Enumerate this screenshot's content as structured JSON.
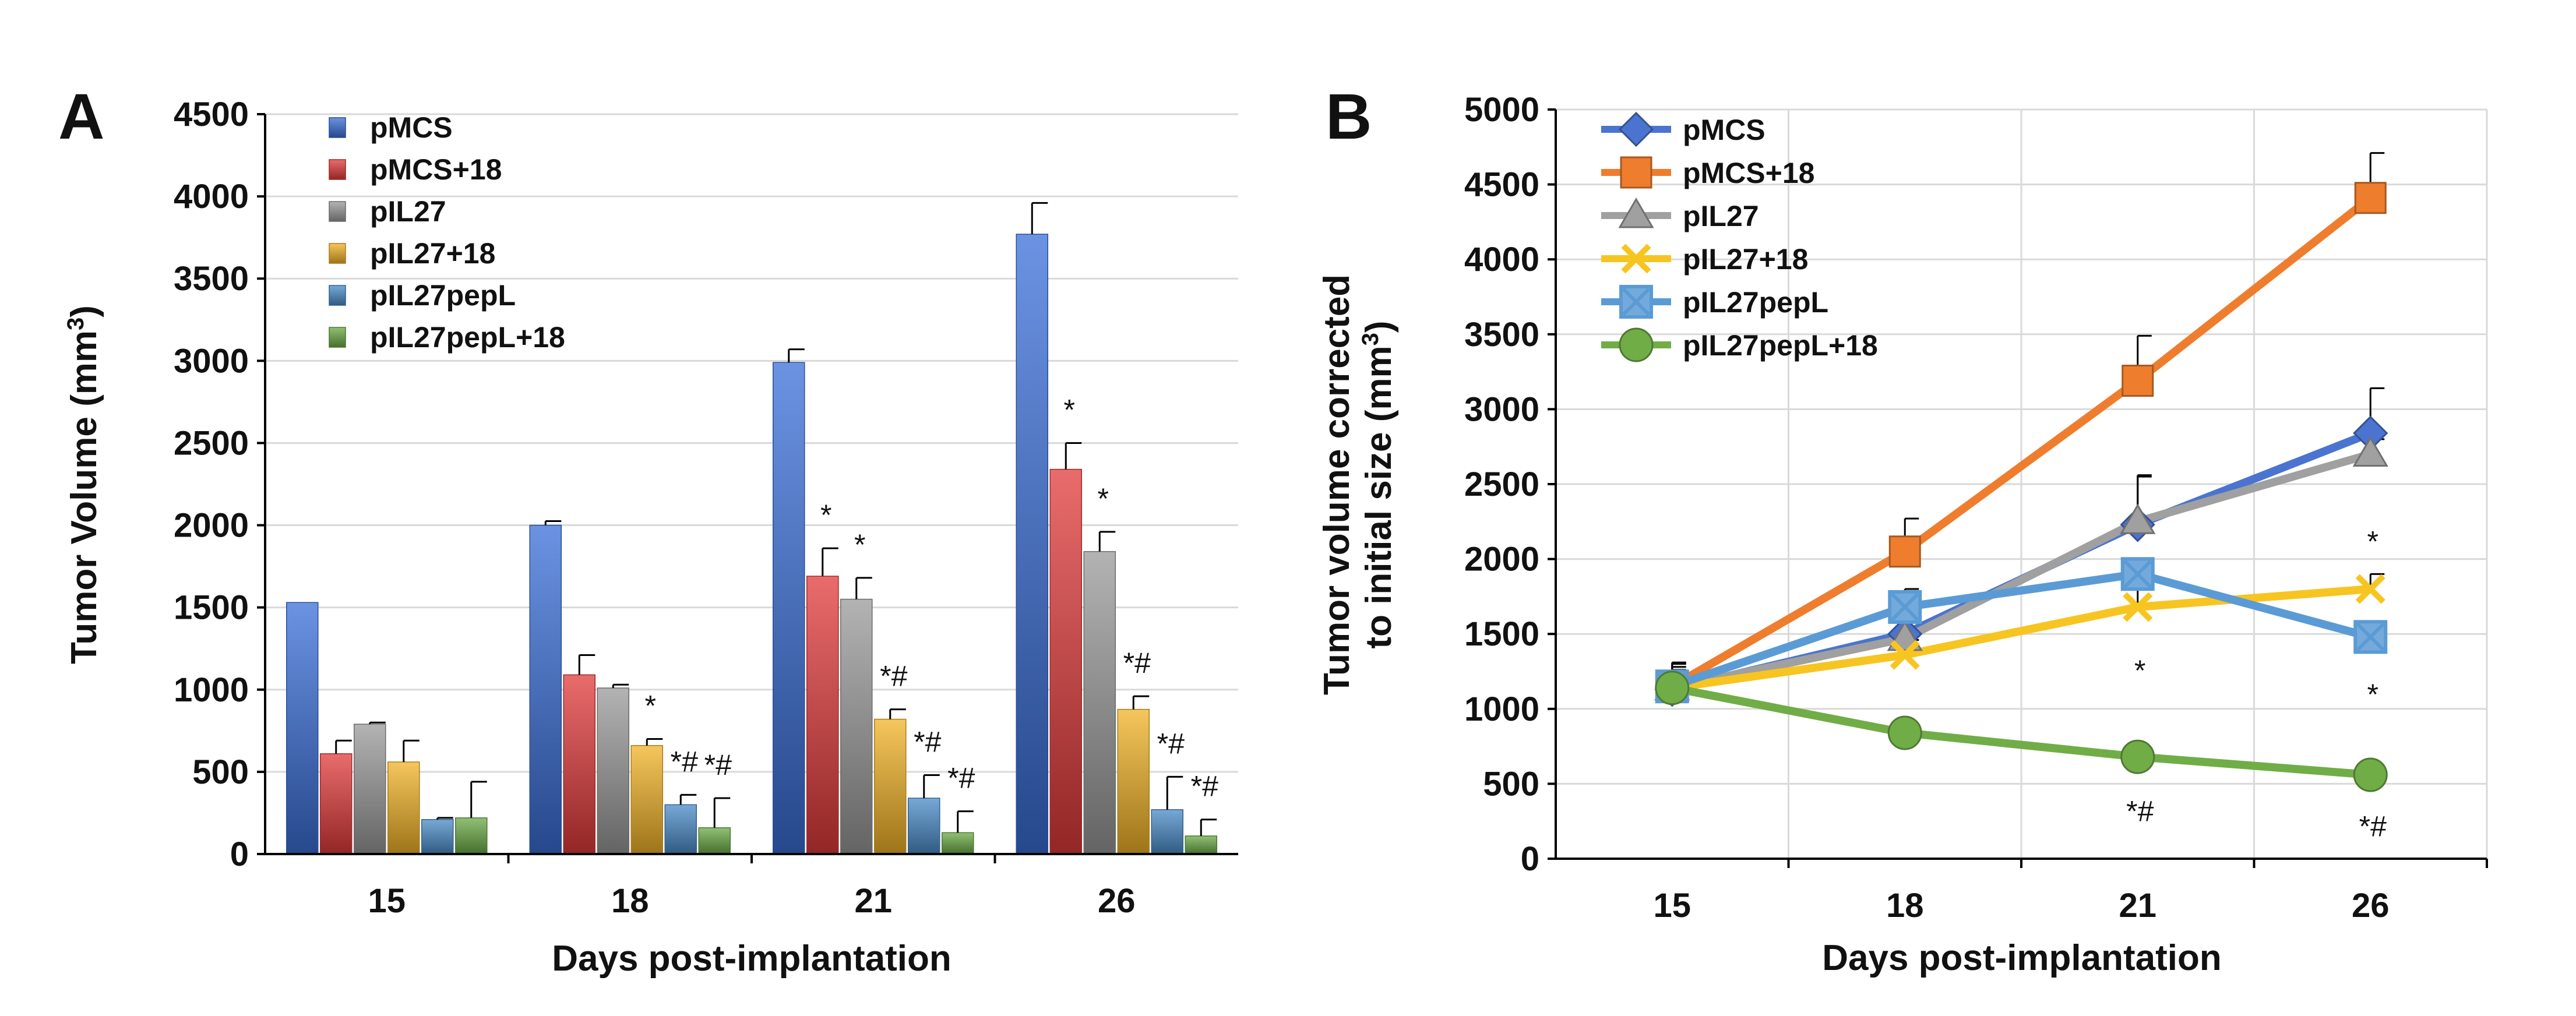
{
  "colors": {
    "pMCS": "#3a6fd8",
    "pMCS+18": "#e23b3b",
    "pIL27": "#9a9a9a",
    "pIL27+18": "#f2b326",
    "pIL27pepL": "#4a8cc8",
    "pIL27pepL+18": "#6bab45",
    "lineA": "#4a74d0",
    "lineB": "#ef7d2e",
    "lineC": "#a0a0a0",
    "lineD": "#f7c521",
    "lineE": "#5b9bd5",
    "lineF": "#70ad47"
  },
  "chart_data": [
    {
      "panel": "A",
      "type": "bar",
      "title": "",
      "xlabel": "Days post-implantation",
      "ylabel": "Tumor Volume (mm3)",
      "ylabel_main": "Tumor Volume (mm",
      "ylabel_sup": "3",
      "ylabel_close": ")",
      "ylim": [
        0,
        4500
      ],
      "yticks": [
        "0",
        "500",
        "1000",
        "1500",
        "2000",
        "2500",
        "3000",
        "3500",
        "4000",
        "4500"
      ],
      "categories": [
        "15",
        "18",
        "21",
        "26"
      ],
      "legend_position": "top-left",
      "series": [
        {
          "name": "pMCS",
          "values": [
            1530,
            2000,
            2990,
            3770
          ],
          "errors": [
            0,
            25,
            80,
            190
          ]
        },
        {
          "name": "pMCS+18",
          "values": [
            610,
            1090,
            1690,
            2340
          ],
          "errors": [
            80,
            120,
            170,
            160
          ]
        },
        {
          "name": "pIL27",
          "values": [
            790,
            1010,
            1550,
            1840
          ],
          "errors": [
            10,
            20,
            130,
            120
          ]
        },
        {
          "name": "pIL27+18",
          "values": [
            560,
            660,
            820,
            880
          ],
          "errors": [
            130,
            40,
            60,
            80
          ]
        },
        {
          "name": "pIL27pepL",
          "values": [
            210,
            300,
            340,
            270
          ],
          "errors": [
            10,
            60,
            140,
            200
          ]
        },
        {
          "name": "pIL27pepL+18",
          "values": [
            220,
            160,
            130,
            110
          ],
          "errors": [
            220,
            180,
            130,
            100
          ]
        }
      ],
      "annotations": [
        {
          "category": 1,
          "series": 3,
          "text": "*"
        },
        {
          "category": 1,
          "series": 4,
          "text": "*#"
        },
        {
          "category": 1,
          "series": 5,
          "text": "*#"
        },
        {
          "category": 2,
          "series": 1,
          "text": "*"
        },
        {
          "category": 2,
          "series": 2,
          "text": "*"
        },
        {
          "category": 2,
          "series": 3,
          "text": "*#"
        },
        {
          "category": 2,
          "series": 4,
          "text": "*#"
        },
        {
          "category": 2,
          "series": 5,
          "text": "*#"
        },
        {
          "category": 3,
          "series": 1,
          "text": "*"
        },
        {
          "category": 3,
          "series": 2,
          "text": "*"
        },
        {
          "category": 3,
          "series": 3,
          "text": "*#"
        },
        {
          "category": 3,
          "series": 4,
          "text": "*#"
        },
        {
          "category": 3,
          "series": 5,
          "text": "*#"
        }
      ]
    },
    {
      "panel": "B",
      "type": "line",
      "title": "",
      "xlabel": "Days post-implantation",
      "ylabel": "Tumor volume corrected to initial size (mm3)",
      "ylabel_line1": "Tumor volume corrected",
      "ylabel_line2_main": "to initial size (mm",
      "ylabel_line2_sup": "3",
      "ylabel_line2_close": ")",
      "ylim": [
        0,
        5000
      ],
      "yticks": [
        "0",
        "500",
        "1000",
        "1500",
        "2000",
        "2500",
        "3000",
        "3500",
        "4000",
        "4500",
        "5000"
      ],
      "x": [
        "15",
        "18",
        "21",
        "26"
      ],
      "legend_position": "top-left",
      "series": [
        {
          "name": "pMCS",
          "marker": "diamond",
          "values": [
            1130,
            1500,
            2230,
            2840
          ],
          "errors": [
            180,
            250,
            330,
            300
          ]
        },
        {
          "name": "pMCS+18",
          "marker": "square",
          "values": [
            1150,
            2050,
            3190,
            4410
          ],
          "errors": [
            150,
            220,
            300,
            300
          ]
        },
        {
          "name": "pIL27",
          "marker": "triangle",
          "values": [
            1140,
            1470,
            2250,
            2700
          ],
          "errors": [
            140,
            180,
            300,
            100
          ]
        },
        {
          "name": "pIL27+18",
          "marker": "x",
          "values": [
            1140,
            1360,
            1680,
            1800
          ],
          "errors": [
            100,
            100,
            120,
            100
          ]
        },
        {
          "name": "pIL27pepL",
          "marker": "star",
          "values": [
            1150,
            1680,
            1900,
            1480
          ],
          "errors": [
            110,
            120,
            100,
            80
          ]
        },
        {
          "name": "pIL27pepL+18",
          "marker": "circle",
          "values": [
            1140,
            840,
            680,
            560
          ],
          "errors": [
            30,
            30,
            30,
            30
          ]
        }
      ],
      "annotations": [
        {
          "x": 2,
          "value": 1260,
          "text": "*"
        },
        {
          "x": 3,
          "value": 2120,
          "text": "*"
        },
        {
          "x": 3,
          "value": 1100,
          "text": "*"
        },
        {
          "x": 2,
          "value": 320,
          "text": "*#"
        },
        {
          "x": 3,
          "value": 220,
          "text": "*#"
        }
      ]
    }
  ]
}
